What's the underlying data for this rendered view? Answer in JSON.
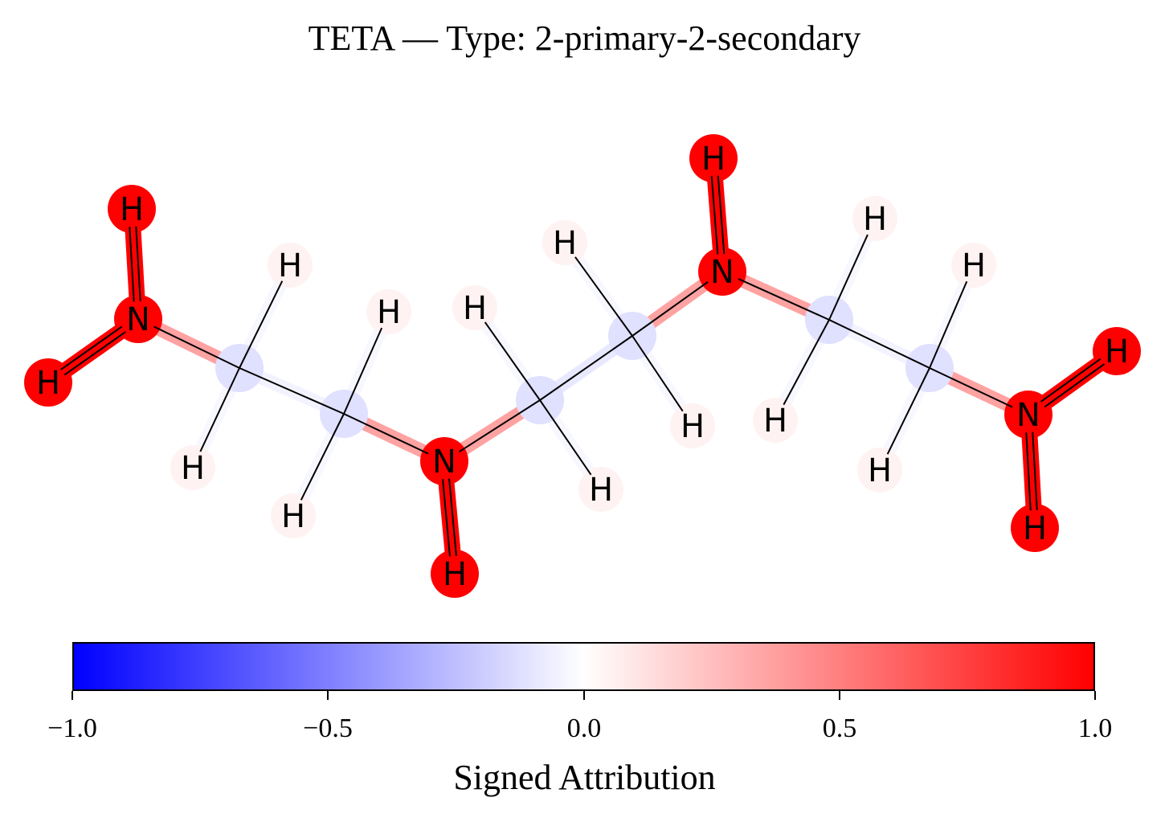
{
  "title": "TETA — Type: 2-primary-2-secondary",
  "molecule": {
    "atoms": [
      {
        "el": "C",
        "attr": -0.12
      },
      {
        "el": "C",
        "attr": -0.12
      },
      {
        "el": "N",
        "attr": 1.0
      },
      {
        "el": "C",
        "attr": -0.12
      },
      {
        "el": "C",
        "attr": -0.12
      },
      {
        "el": "N",
        "attr": 1.0
      },
      {
        "el": "C",
        "attr": -0.12
      },
      {
        "el": "C",
        "attr": -0.12
      },
      {
        "el": "N",
        "attr": 1.0
      },
      {
        "el": "N",
        "attr": 1.0
      },
      {
        "el": "H",
        "attr": 0.05
      },
      {
        "el": "H",
        "attr": 0.05
      },
      {
        "el": "H",
        "attr": 0.05
      },
      {
        "el": "H",
        "attr": 0.05
      },
      {
        "el": "H",
        "attr": 0.05
      },
      {
        "el": "H",
        "attr": 0.05
      },
      {
        "el": "H",
        "attr": 0.05
      },
      {
        "el": "H",
        "attr": 0.05
      },
      {
        "el": "H",
        "attr": 0.05
      },
      {
        "el": "H",
        "attr": 0.05
      },
      {
        "el": "H",
        "attr": 0.05
      },
      {
        "el": "H",
        "attr": 0.05
      },
      {
        "el": "H",
        "attr": 1.0
      },
      {
        "el": "H",
        "attr": 1.0
      },
      {
        "el": "H",
        "attr": 1.0
      },
      {
        "el": "H",
        "attr": 1.0
      },
      {
        "el": "H",
        "attr": 1.0
      },
      {
        "el": "H",
        "attr": 1.0
      }
    ],
    "bonds": [
      {
        "a": 9,
        "b": 0,
        "attr": 0.4
      },
      {
        "a": 0,
        "b": 1,
        "attr": -0.05
      },
      {
        "a": 1,
        "b": 2,
        "attr": 0.4
      },
      {
        "a": 2,
        "b": 3,
        "attr": 0.4
      },
      {
        "a": 3,
        "b": 4,
        "attr": -0.1
      },
      {
        "a": 4,
        "b": 5,
        "attr": 0.4
      },
      {
        "a": 5,
        "b": 6,
        "attr": 0.4
      },
      {
        "a": 6,
        "b": 7,
        "attr": -0.05
      },
      {
        "a": 7,
        "b": 8,
        "attr": 0.4
      },
      {
        "a": 9,
        "b": 22,
        "attr": 1.0
      },
      {
        "a": 9,
        "b": 23,
        "attr": 1.0
      },
      {
        "a": 2,
        "b": 24,
        "attr": 1.0
      },
      {
        "a": 5,
        "b": 25,
        "attr": 1.0
      },
      {
        "a": 8,
        "b": 26,
        "attr": 1.0
      },
      {
        "a": 8,
        "b": 27,
        "attr": 1.0
      },
      {
        "a": 0,
        "b": 10,
        "attr": -0.03
      },
      {
        "a": 0,
        "b": 11,
        "attr": -0.03
      },
      {
        "a": 1,
        "b": 12,
        "attr": -0.03
      },
      {
        "a": 1,
        "b": 13,
        "attr": -0.03
      },
      {
        "a": 3,
        "b": 14,
        "attr": -0.03
      },
      {
        "a": 3,
        "b": 15,
        "attr": -0.03
      },
      {
        "a": 4,
        "b": 16,
        "attr": -0.03
      },
      {
        "a": 4,
        "b": 17,
        "attr": -0.03
      },
      {
        "a": 6,
        "b": 18,
        "attr": -0.03
      },
      {
        "a": 6,
        "b": 19,
        "attr": -0.03
      },
      {
        "a": 7,
        "b": 20,
        "attr": -0.03
      },
      {
        "a": 7,
        "b": 21,
        "attr": -0.03
      }
    ]
  },
  "colorbar": {
    "colormap": "bwr",
    "color_low": "#0000ff",
    "color_mid": "#ffffff",
    "color_high": "#ff0000",
    "range": [
      -1.0,
      1.0
    ],
    "ticks": [
      "−1.0",
      "−0.5",
      "0.0",
      "0.5",
      "1.0"
    ],
    "label": "Signed Attribution"
  }
}
